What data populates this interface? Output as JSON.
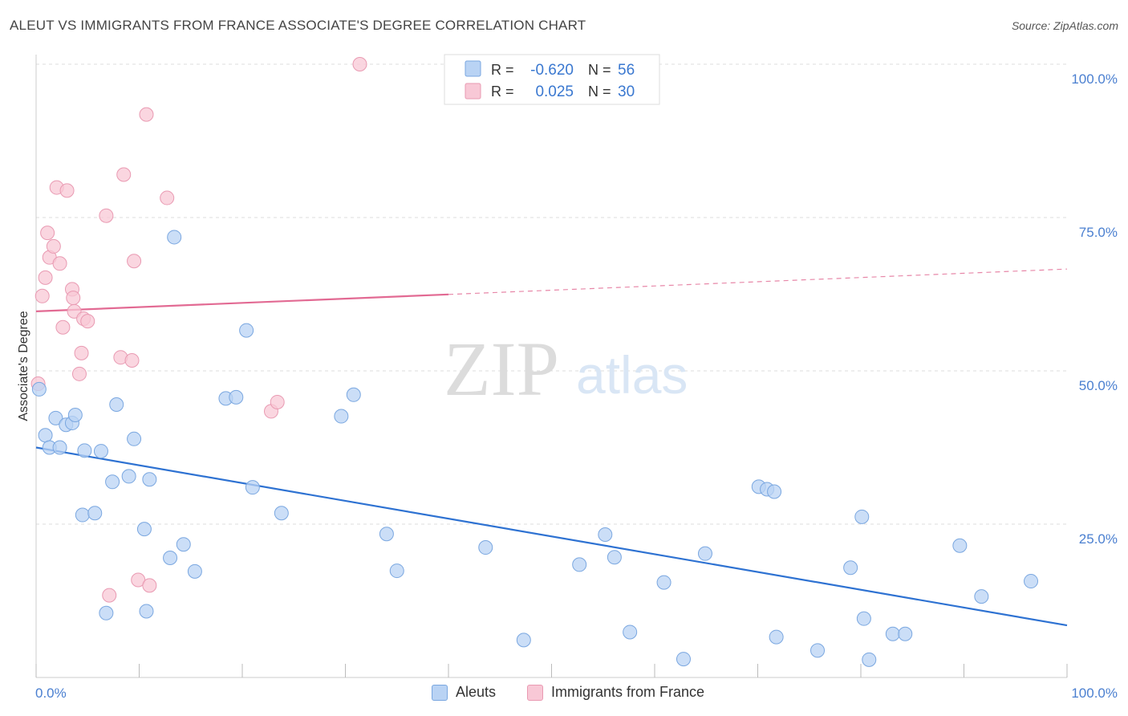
{
  "title": "ALEUT VS IMMIGRANTS FROM FRANCE ASSOCIATE'S DEGREE CORRELATION CHART",
  "source": "Source: ZipAtlas.com",
  "watermark": {
    "zip": "ZIP",
    "atlas": "atlas"
  },
  "colors": {
    "blue_fill": "#b9d3f4",
    "blue_stroke": "#7aa7e0",
    "blue_line": "#2e72d2",
    "pink_fill": "#f8c8d6",
    "pink_stroke": "#e99ab2",
    "pink_line": "#e26a93",
    "tick_text": "#4a7fd0",
    "grid": "#dddddd"
  },
  "legend_top": {
    "rows": [
      {
        "r_label": "R =",
        "r_value": "-0.620",
        "n_label": "N =",
        "n_value": "56",
        "color": "blue"
      },
      {
        "r_label": "R =",
        "r_value": "0.025",
        "n_label": "N =",
        "n_value": "30",
        "color": "pink"
      }
    ]
  },
  "legend_bottom": {
    "items": [
      "Aleuts",
      "Immigrants from France"
    ]
  },
  "chart_data": {
    "type": "scatter",
    "xlabel": "",
    "ylabel": "Associate's Degree",
    "xlim": [
      0,
      100
    ],
    "ylim": [
      0,
      100
    ],
    "x_tick_labels": [
      "0.0%",
      "100.0%"
    ],
    "y_tick_labels": [
      {
        "value": 100,
        "label": "100.0%"
      },
      {
        "value": 75,
        "label": "75.0%"
      },
      {
        "value": 50,
        "label": "50.0%"
      },
      {
        "value": 25,
        "label": "25.0%"
      }
    ],
    "grid": true,
    "series": [
      {
        "name": "Aleuts",
        "color": "blue",
        "trend": {
          "x": [
            0,
            100
          ],
          "y": [
            37.5,
            8.5
          ],
          "dashed_from": null
        },
        "points": [
          [
            0.3,
            47.0
          ],
          [
            0.9,
            39.5
          ],
          [
            1.3,
            37.5
          ],
          [
            1.9,
            42.3
          ],
          [
            2.3,
            37.5
          ],
          [
            2.9,
            41.2
          ],
          [
            3.5,
            41.5
          ],
          [
            3.8,
            42.8
          ],
          [
            4.5,
            26.5
          ],
          [
            4.7,
            37.0
          ],
          [
            5.7,
            26.8
          ],
          [
            6.3,
            36.9
          ],
          [
            6.8,
            10.5
          ],
          [
            7.4,
            31.9
          ],
          [
            7.8,
            44.5
          ],
          [
            9.0,
            32.8
          ],
          [
            9.5,
            38.9
          ],
          [
            10.5,
            24.2
          ],
          [
            10.7,
            10.8
          ],
          [
            11.0,
            32.3
          ],
          [
            13.0,
            19.5
          ],
          [
            13.4,
            71.8
          ],
          [
            14.3,
            21.7
          ],
          [
            15.4,
            17.3
          ],
          [
            18.4,
            45.5
          ],
          [
            19.4,
            45.7
          ],
          [
            20.4,
            56.6
          ],
          [
            21.0,
            31.0
          ],
          [
            23.8,
            26.8
          ],
          [
            29.6,
            42.6
          ],
          [
            30.8,
            46.1
          ],
          [
            34.0,
            23.4
          ],
          [
            35.0,
            17.4
          ],
          [
            43.6,
            21.2
          ],
          [
            47.3,
            6.1
          ],
          [
            52.7,
            18.4
          ],
          [
            55.2,
            23.3
          ],
          [
            56.1,
            19.6
          ],
          [
            57.6,
            7.4
          ],
          [
            60.9,
            15.5
          ],
          [
            62.8,
            3.0
          ],
          [
            64.9,
            20.2
          ],
          [
            70.1,
            31.1
          ],
          [
            70.9,
            30.7
          ],
          [
            71.6,
            30.3
          ],
          [
            71.8,
            6.6
          ],
          [
            75.8,
            4.4
          ],
          [
            79.0,
            17.9
          ],
          [
            80.1,
            26.2
          ],
          [
            80.3,
            9.6
          ],
          [
            80.8,
            2.9
          ],
          [
            83.1,
            7.1
          ],
          [
            84.3,
            7.1
          ],
          [
            89.6,
            21.5
          ],
          [
            91.7,
            13.2
          ],
          [
            96.5,
            15.7
          ]
        ]
      },
      {
        "name": "Immigrants from France",
        "color": "pink",
        "trend": {
          "x": [
            0,
            100
          ],
          "y": [
            59.7,
            66.6
          ],
          "dashed_from": 40
        },
        "points": [
          [
            0.2,
            47.9
          ],
          [
            0.6,
            62.2
          ],
          [
            0.9,
            65.2
          ],
          [
            1.1,
            72.5
          ],
          [
            1.3,
            68.5
          ],
          [
            1.7,
            70.3
          ],
          [
            2.0,
            79.9
          ],
          [
            2.3,
            67.5
          ],
          [
            2.6,
            57.1
          ],
          [
            3.0,
            79.4
          ],
          [
            3.5,
            63.3
          ],
          [
            3.6,
            61.9
          ],
          [
            3.7,
            59.7
          ],
          [
            4.2,
            49.5
          ],
          [
            4.4,
            52.9
          ],
          [
            4.6,
            58.5
          ],
          [
            5.0,
            58.1
          ],
          [
            6.8,
            75.3
          ],
          [
            7.1,
            13.4
          ],
          [
            8.2,
            52.2
          ],
          [
            8.5,
            82.0
          ],
          [
            9.3,
            51.7
          ],
          [
            9.5,
            67.9
          ],
          [
            9.9,
            15.9
          ],
          [
            10.7,
            91.8
          ],
          [
            11.0,
            15.0
          ],
          [
            12.7,
            78.2
          ],
          [
            22.8,
            43.4
          ],
          [
            23.4,
            44.9
          ],
          [
            31.4,
            100.0
          ]
        ]
      }
    ]
  }
}
